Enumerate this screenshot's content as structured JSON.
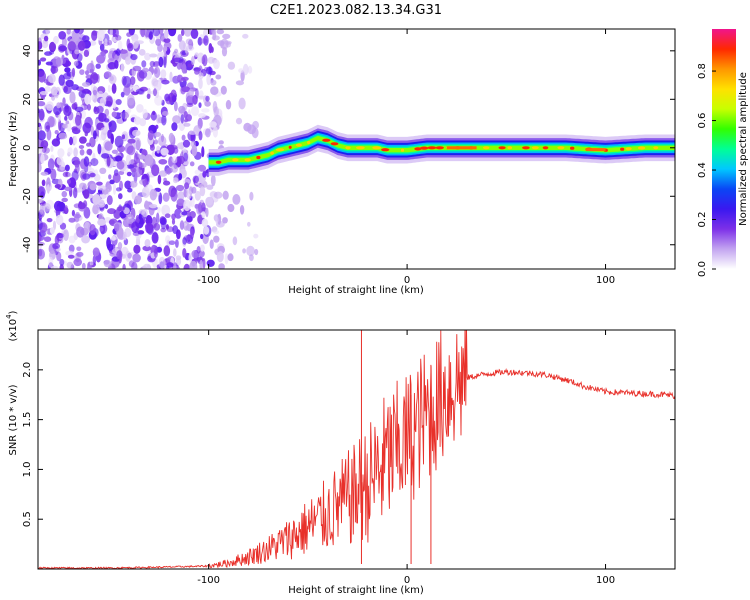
{
  "title": "C2E1.2023.082.13.34.G31",
  "chart_data": [
    {
      "type": "heatmap",
      "xlabel": "Height of straight line (km)",
      "ylabel": "Frequency (Hz)",
      "xlim": [
        -186,
        135
      ],
      "ylim": [
        -50,
        49
      ],
      "xticks": [
        -100,
        0,
        100
      ],
      "yticks": [
        -40,
        -20,
        0,
        20,
        40
      ],
      "colorbar": {
        "label": "Normalized spectral amplitude",
        "range": [
          0.0,
          0.97
        ],
        "ticks": [
          "0.0",
          "0.2",
          "0.4",
          "0.6",
          "0.8"
        ],
        "tick_values": [
          0.0,
          0.2,
          0.4,
          0.6,
          0.8
        ],
        "colors": [
          "#ffffff",
          "#c3a4f0",
          "#7d30e8",
          "#3a18f0",
          "#0a46f5",
          "#00c8ff",
          "#00ff96",
          "#32ff00",
          "#c8ff00",
          "#ffe100",
          "#ff9600",
          "#ff2800",
          "#f0148c"
        ]
      },
      "ridge": {
        "x": [
          -100,
          -95,
          -90,
          -85,
          -80,
          -75,
          -70,
          -65,
          -60,
          -55,
          -50,
          -45,
          -40,
          -35,
          -30,
          -25,
          -20,
          -15,
          -10,
          -5,
          0,
          10,
          20,
          40,
          60,
          80,
          100,
          120,
          135
        ],
        "y": [
          -6,
          -6,
          -5,
          -5,
          -5,
          -4,
          -3,
          -1,
          0,
          1,
          2,
          4,
          3,
          1,
          0,
          0,
          0,
          0,
          -1,
          -1,
          -1,
          0,
          0,
          0,
          0,
          0,
          -1,
          0,
          0
        ]
      },
      "noise_region": {
        "x_range": [
          -186,
          -90
        ],
        "color": "purple"
      }
    },
    {
      "type": "line",
      "xlabel": "Height of straight line (km)",
      "ylabel": "SNR (10 * v/v)",
      "multiplier_label": "(x10",
      "multiplier_exponent": "4",
      "xlim": [
        -186,
        135
      ],
      "ylim": [
        0.0,
        2.4
      ],
      "xticks": [
        -100,
        0,
        100
      ],
      "yticks": [
        0.5,
        1.0,
        1.5,
        2.0
      ],
      "ytick_labels": [
        "0.5",
        "1.0",
        "1.5",
        "2.0"
      ],
      "color": "#e8302a",
      "series": [
        {
          "x": [
            -186,
            -150,
            -120,
            -100,
            -90,
            -80,
            -70,
            -60,
            -50,
            -40,
            -30,
            -26,
            -24,
            -20,
            -10,
            0,
            10,
            20,
            25,
            30,
            40,
            50,
            60,
            70,
            80,
            90,
            100,
            110,
            120,
            130,
            135
          ],
          "values": [
            0.01,
            0.01,
            0.02,
            0.03,
            0.06,
            0.12,
            0.2,
            0.3,
            0.42,
            0.55,
            0.7,
            0.75,
            0.8,
            0.85,
            1.1,
            1.3,
            1.55,
            1.8,
            1.88,
            1.92,
            1.96,
            1.98,
            1.97,
            1.95,
            1.9,
            1.83,
            1.78,
            1.77,
            1.76,
            1.75,
            1.74
          ]
        }
      ],
      "spikes": [
        {
          "x": -23,
          "y": 2.4
        },
        {
          "x": 12,
          "y": 2.05
        },
        {
          "x": 2,
          "y": 1.75
        }
      ]
    }
  ]
}
